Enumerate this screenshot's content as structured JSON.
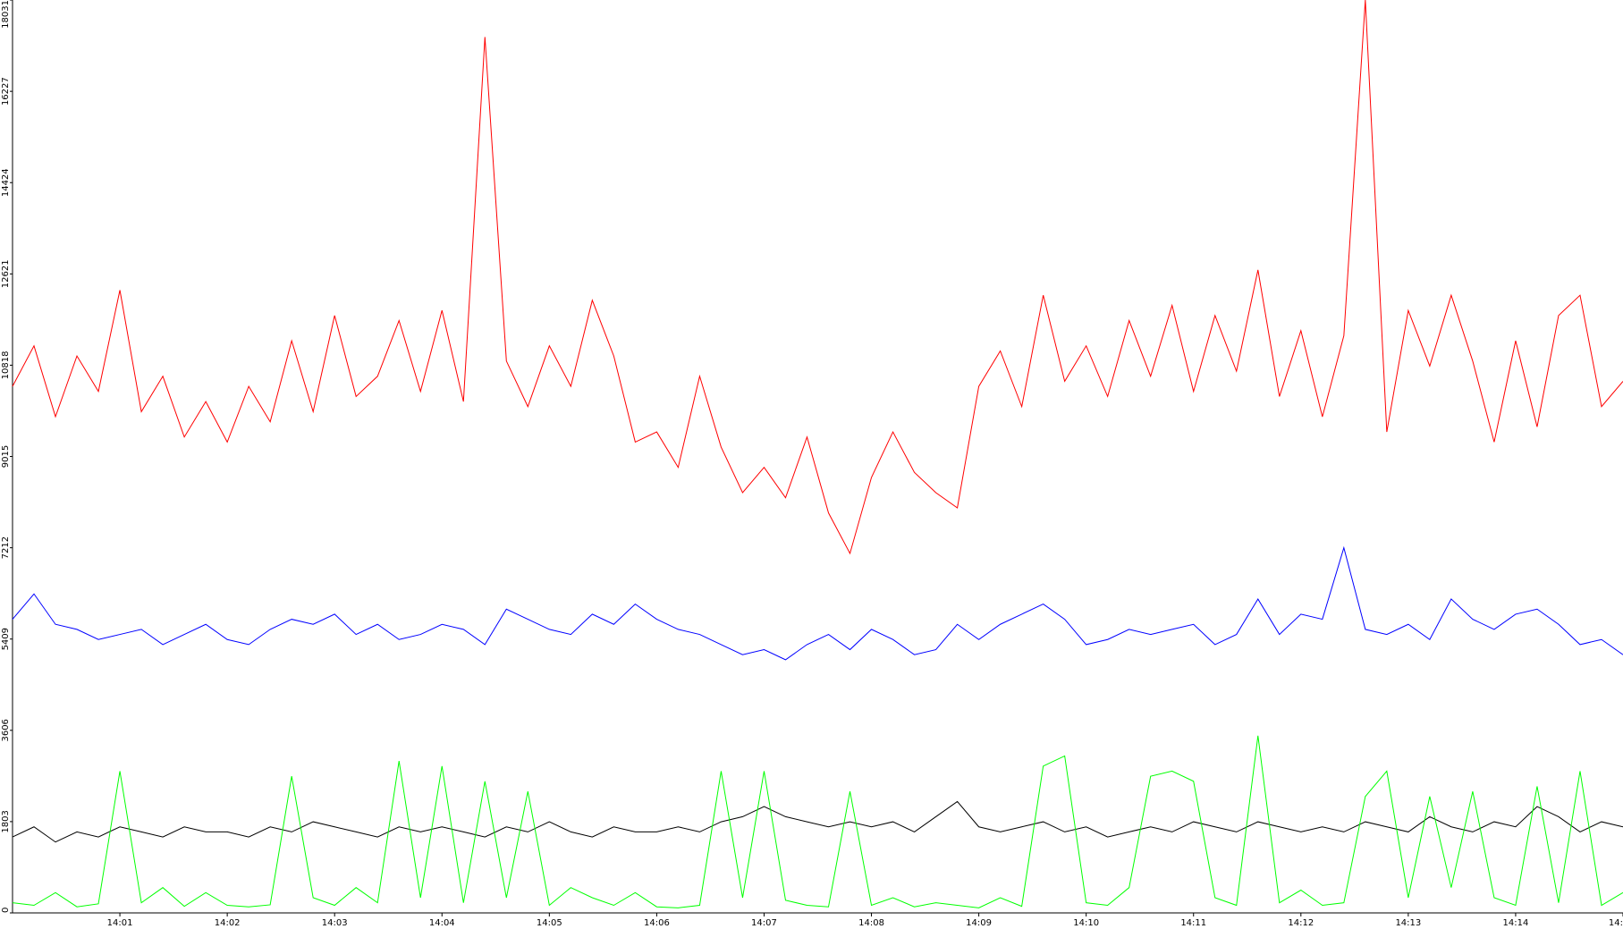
{
  "chart_data": {
    "type": "line",
    "x": [
      840,
      840.2,
      840.4,
      840.6,
      840.8,
      841,
      841.2,
      841.4,
      841.6,
      841.8,
      842,
      842.2,
      842.4,
      842.6,
      842.8,
      843,
      843.2,
      843.4,
      843.6,
      843.8,
      844,
      844.2,
      844.4,
      844.6,
      844.8,
      845,
      845.2,
      845.4,
      845.6,
      845.8,
      846,
      846.2,
      846.4,
      846.6,
      846.8,
      847,
      847.2,
      847.4,
      847.6,
      847.8,
      848,
      848.2,
      848.4,
      848.6,
      848.8,
      849,
      849.2,
      849.4,
      849.6,
      849.8,
      850,
      850.2,
      850.4,
      850.6,
      850.8,
      851,
      851.2,
      851.4,
      851.6,
      851.8,
      852,
      852.2,
      852.4,
      852.6,
      852.8,
      853,
      853.2,
      853.4,
      853.6,
      853.8,
      854,
      854.2,
      854.4,
      854.6,
      854.8,
      855
    ],
    "series": [
      {
        "color": "#ff0000",
        "values": [
          10400,
          11200,
          9800,
          11000,
          10300,
          12300,
          9900,
          10600,
          9400,
          10100,
          9300,
          10400,
          9700,
          11300,
          9900,
          11800,
          10200,
          10600,
          11700,
          10300,
          11900,
          10100,
          17300,
          10900,
          10000,
          11200,
          10400,
          12100,
          11000,
          9300,
          9500,
          8800,
          10600,
          9200,
          8300,
          8800,
          8200,
          9400,
          7900,
          7100,
          8600,
          9500,
          8700,
          8300,
          8000,
          10400,
          11100,
          10000,
          12200,
          10500,
          11200,
          10200,
          11700,
          10600,
          12000,
          10300,
          11800,
          10700,
          12700,
          10200,
          11500,
          9800,
          11400,
          18031,
          9500,
          11900,
          10800,
          12200,
          10900,
          9300,
          11300,
          9600,
          11800,
          12200,
          10000,
          10500
        ]
      },
      {
        "color": "#0000ff",
        "values": [
          5800,
          6300,
          5700,
          5600,
          5400,
          5500,
          5600,
          5300,
          5500,
          5700,
          5400,
          5300,
          5600,
          5800,
          5700,
          5900,
          5500,
          5700,
          5400,
          5500,
          5700,
          5600,
          5300,
          6000,
          5800,
          5600,
          5500,
          5900,
          5700,
          6100,
          5800,
          5600,
          5500,
          5300,
          5100,
          5200,
          5000,
          5300,
          5500,
          5200,
          5600,
          5400,
          5100,
          5200,
          5700,
          5400,
          5700,
          5900,
          6100,
          5800,
          5300,
          5400,
          5600,
          5500,
          5600,
          5700,
          5300,
          5500,
          6200,
          5500,
          5900,
          5800,
          7212,
          5600,
          5500,
          5700,
          5400,
          6200,
          5800,
          5600,
          5900,
          6000,
          5700,
          5300,
          5400,
          5100
        ]
      },
      {
        "color": "#000000",
        "values": [
          1500,
          1700,
          1400,
          1600,
          1500,
          1700,
          1600,
          1500,
          1700,
          1600,
          1600,
          1500,
          1700,
          1600,
          1800,
          1700,
          1600,
          1500,
          1700,
          1600,
          1700,
          1600,
          1500,
          1700,
          1600,
          1800,
          1600,
          1500,
          1700,
          1600,
          1600,
          1700,
          1600,
          1800,
          1900,
          2100,
          1900,
          1800,
          1700,
          1800,
          1700,
          1800,
          1600,
          1900,
          2200,
          1700,
          1600,
          1700,
          1800,
          1600,
          1700,
          1500,
          1600,
          1700,
          1600,
          1800,
          1700,
          1600,
          1800,
          1700,
          1600,
          1700,
          1600,
          1800,
          1700,
          1600,
          1900,
          1700,
          1600,
          1800,
          1700,
          2100,
          1900,
          1600,
          1800,
          1700
        ]
      },
      {
        "color": "#00ff00",
        "values": [
          200,
          150,
          400,
          120,
          180,
          2800,
          200,
          500,
          130,
          400,
          150,
          120,
          160,
          2700,
          300,
          150,
          500,
          200,
          3000,
          300,
          2900,
          200,
          2600,
          300,
          2400,
          150,
          500,
          300,
          150,
          400,
          120,
          100,
          150,
          2800,
          300,
          2800,
          250,
          150,
          120,
          2400,
          150,
          300,
          120,
          200,
          150,
          100,
          300,
          130,
          2900,
          3100,
          200,
          150,
          500,
          2700,
          2800,
          2600,
          300,
          150,
          3500,
          200,
          450,
          150,
          200,
          2300,
          2800,
          300,
          2300,
          500,
          2400,
          300,
          150,
          2500,
          200,
          2800,
          150,
          400
        ]
      }
    ],
    "xlim": [
      840,
      855
    ],
    "xticks": [
      {
        "value": 841,
        "label": "14:01"
      },
      {
        "value": 842,
        "label": "14:02"
      },
      {
        "value": 843,
        "label": "14:03"
      },
      {
        "value": 844,
        "label": "14:04"
      },
      {
        "value": 845,
        "label": "14:05"
      },
      {
        "value": 846,
        "label": "14:06"
      },
      {
        "value": 847,
        "label": "14:07"
      },
      {
        "value": 848,
        "label": "14:08"
      },
      {
        "value": 849,
        "label": "14:09"
      },
      {
        "value": 850,
        "label": "14:10"
      },
      {
        "value": 851,
        "label": "14:11"
      },
      {
        "value": 852,
        "label": "14:12"
      },
      {
        "value": 853,
        "label": "14:13"
      },
      {
        "value": 854,
        "label": "14:14"
      },
      {
        "value": 855,
        "label": "14:"
      }
    ],
    "ylim": [
      0,
      18031
    ],
    "yticks": [
      0,
      1803,
      3606,
      5409,
      7212,
      9015,
      10818,
      12621,
      14424,
      16227,
      18031
    ]
  }
}
